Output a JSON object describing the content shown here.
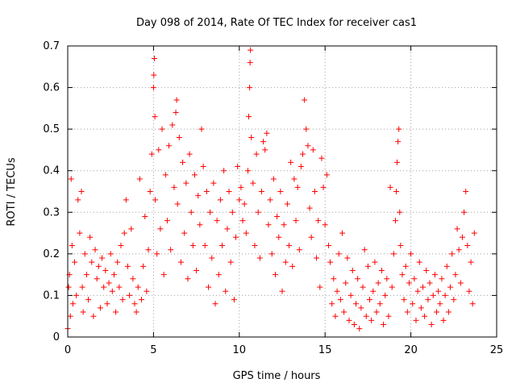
{
  "chart_data": {
    "type": "scatter",
    "title": "Day 098 of 2014, Rate Of TEC Index for receiver cas1",
    "xlabel": "GPS time / hours",
    "ylabel": "ROTI / TECUs",
    "xlim": [
      0,
      25
    ],
    "ylim": [
      0,
      0.7
    ],
    "x_ticks": [
      0,
      5,
      10,
      15,
      20,
      25
    ],
    "y_ticks": [
      0,
      0.1,
      0.2,
      0.3,
      0.4,
      0.5,
      0.6,
      0.7
    ],
    "x_tick_labels": [
      "0",
      "5",
      "10",
      "15",
      "20",
      "25"
    ],
    "y_tick_labels": [
      "0",
      "0.1",
      "0.2",
      "0.3",
      "0.4",
      "0.5",
      "0.6",
      "0.7"
    ],
    "grid": true,
    "marker": "+",
    "marker_color": "#ff0000",
    "series": [
      {
        "name": "ROTI",
        "points": [
          [
            0.0,
            0.02
          ],
          [
            0.05,
            0.12
          ],
          [
            0.1,
            0.15
          ],
          [
            0.15,
            0.05
          ],
          [
            0.2,
            0.38
          ],
          [
            0.25,
            0.22
          ],
          [
            0.3,
            0.08
          ],
          [
            0.4,
            0.18
          ],
          [
            0.5,
            0.1
          ],
          [
            0.6,
            0.33
          ],
          [
            0.7,
            0.25
          ],
          [
            0.8,
            0.35
          ],
          [
            0.85,
            0.12
          ],
          [
            0.9,
            0.06
          ],
          [
            1.0,
            0.2
          ],
          [
            1.1,
            0.15
          ],
          [
            1.2,
            0.09
          ],
          [
            1.3,
            0.24
          ],
          [
            1.4,
            0.18
          ],
          [
            1.5,
            0.05
          ],
          [
            1.6,
            0.21
          ],
          [
            1.7,
            0.14
          ],
          [
            1.8,
            0.17
          ],
          [
            1.9,
            0.07
          ],
          [
            2.0,
            0.19
          ],
          [
            2.1,
            0.12
          ],
          [
            2.2,
            0.16
          ],
          [
            2.3,
            0.08
          ],
          [
            2.4,
            0.13
          ],
          [
            2.5,
            0.2
          ],
          [
            2.6,
            0.11
          ],
          [
            2.7,
            0.15
          ],
          [
            2.8,
            0.06
          ],
          [
            2.9,
            0.18
          ],
          [
            3.0,
            0.12
          ],
          [
            3.1,
            0.22
          ],
          [
            3.2,
            0.09
          ],
          [
            3.3,
            0.25
          ],
          [
            3.4,
            0.33
          ],
          [
            3.5,
            0.17
          ],
          [
            3.6,
            0.1
          ],
          [
            3.7,
            0.26
          ],
          [
            3.8,
            0.14
          ],
          [
            3.9,
            0.08
          ],
          [
            4.0,
            0.06
          ],
          [
            4.1,
            0.12
          ],
          [
            4.2,
            0.38
          ],
          [
            4.3,
            0.09
          ],
          [
            4.4,
            0.17
          ],
          [
            4.5,
            0.29
          ],
          [
            4.6,
            0.11
          ],
          [
            4.7,
            0.21
          ],
          [
            4.8,
            0.35
          ],
          [
            4.9,
            0.44
          ],
          [
            5.0,
            0.6
          ],
          [
            5.02,
            0.63
          ],
          [
            5.05,
            0.67
          ],
          [
            5.08,
            0.53
          ],
          [
            5.1,
            0.33
          ],
          [
            5.2,
            0.2
          ],
          [
            5.3,
            0.45
          ],
          [
            5.4,
            0.26
          ],
          [
            5.5,
            0.5
          ],
          [
            5.6,
            0.15
          ],
          [
            5.7,
            0.39
          ],
          [
            5.8,
            0.28
          ],
          [
            5.9,
            0.46
          ],
          [
            6.0,
            0.21
          ],
          [
            6.1,
            0.51
          ],
          [
            6.2,
            0.36
          ],
          [
            6.3,
            0.54
          ],
          [
            6.35,
            0.57
          ],
          [
            6.4,
            0.32
          ],
          [
            6.5,
            0.48
          ],
          [
            6.6,
            0.18
          ],
          [
            6.7,
            0.42
          ],
          [
            6.8,
            0.25
          ],
          [
            6.9,
            0.37
          ],
          [
            7.0,
            0.14
          ],
          [
            7.1,
            0.44
          ],
          [
            7.2,
            0.3
          ],
          [
            7.3,
            0.22
          ],
          [
            7.4,
            0.39
          ],
          [
            7.5,
            0.16
          ],
          [
            7.6,
            0.34
          ],
          [
            7.7,
            0.27
          ],
          [
            7.8,
            0.5
          ],
          [
            7.9,
            0.41
          ],
          [
            8.0,
            0.22
          ],
          [
            8.1,
            0.35
          ],
          [
            8.2,
            0.12
          ],
          [
            8.3,
            0.3
          ],
          [
            8.4,
            0.19
          ],
          [
            8.5,
            0.37
          ],
          [
            8.6,
            0.08
          ],
          [
            8.7,
            0.28
          ],
          [
            8.8,
            0.15
          ],
          [
            8.9,
            0.33
          ],
          [
            9.0,
            0.22
          ],
          [
            9.1,
            0.4
          ],
          [
            9.2,
            0.11
          ],
          [
            9.3,
            0.26
          ],
          [
            9.4,
            0.35
          ],
          [
            9.5,
            0.18
          ],
          [
            9.6,
            0.3
          ],
          [
            9.7,
            0.09
          ],
          [
            9.8,
            0.24
          ],
          [
            9.9,
            0.41
          ],
          [
            10.0,
            0.33
          ],
          [
            10.1,
            0.36
          ],
          [
            10.2,
            0.28
          ],
          [
            10.3,
            0.32
          ],
          [
            10.4,
            0.25
          ],
          [
            10.5,
            0.4
          ],
          [
            10.55,
            0.53
          ],
          [
            10.6,
            0.6
          ],
          [
            10.63,
            0.66
          ],
          [
            10.65,
            0.69
          ],
          [
            10.7,
            0.48
          ],
          [
            10.8,
            0.37
          ],
          [
            10.9,
            0.22
          ],
          [
            11.0,
            0.44
          ],
          [
            11.1,
            0.3
          ],
          [
            11.2,
            0.19
          ],
          [
            11.3,
            0.35
          ],
          [
            11.4,
            0.47
          ],
          [
            11.5,
            0.45
          ],
          [
            11.6,
            0.49
          ],
          [
            11.7,
            0.27
          ],
          [
            11.8,
            0.33
          ],
          [
            11.9,
            0.2
          ],
          [
            12.0,
            0.38
          ],
          [
            12.1,
            0.15
          ],
          [
            12.2,
            0.29
          ],
          [
            12.3,
            0.24
          ],
          [
            12.4,
            0.35
          ],
          [
            12.5,
            0.11
          ],
          [
            12.6,
            0.27
          ],
          [
            12.7,
            0.18
          ],
          [
            12.8,
            0.32
          ],
          [
            12.9,
            0.22
          ],
          [
            13.0,
            0.42
          ],
          [
            13.1,
            0.17
          ],
          [
            13.2,
            0.38
          ],
          [
            13.3,
            0.28
          ],
          [
            13.4,
            0.36
          ],
          [
            13.5,
            0.21
          ],
          [
            13.6,
            0.41
          ],
          [
            13.7,
            0.44
          ],
          [
            13.8,
            0.57
          ],
          [
            13.9,
            0.5
          ],
          [
            14.0,
            0.46
          ],
          [
            14.1,
            0.31
          ],
          [
            14.2,
            0.24
          ],
          [
            14.3,
            0.45
          ],
          [
            14.4,
            0.35
          ],
          [
            14.5,
            0.19
          ],
          [
            14.6,
            0.28
          ],
          [
            14.7,
            0.12
          ],
          [
            14.8,
            0.43
          ],
          [
            14.9,
            0.36
          ],
          [
            15.0,
            0.27
          ],
          [
            15.1,
            0.39
          ],
          [
            15.2,
            0.22
          ],
          [
            15.3,
            0.18
          ],
          [
            15.4,
            0.08
          ],
          [
            15.5,
            0.14
          ],
          [
            15.6,
            0.05
          ],
          [
            15.7,
            0.11
          ],
          [
            15.8,
            0.2
          ],
          [
            15.9,
            0.09
          ],
          [
            16.0,
            0.25
          ],
          [
            16.1,
            0.06
          ],
          [
            16.2,
            0.13
          ],
          [
            16.3,
            0.19
          ],
          [
            16.4,
            0.04
          ],
          [
            16.5,
            0.1
          ],
          [
            16.6,
            0.16
          ],
          [
            16.7,
            0.03
          ],
          [
            16.8,
            0.08
          ],
          [
            16.9,
            0.14
          ],
          [
            17.0,
            0.02
          ],
          [
            17.1,
            0.07
          ],
          [
            17.2,
            0.12
          ],
          [
            17.3,
            0.21
          ],
          [
            17.4,
            0.05
          ],
          [
            17.5,
            0.17
          ],
          [
            17.6,
            0.09
          ],
          [
            17.7,
            0.04
          ],
          [
            17.8,
            0.11
          ],
          [
            17.9,
            0.18
          ],
          [
            18.0,
            0.06
          ],
          [
            18.1,
            0.13
          ],
          [
            18.2,
            0.08
          ],
          [
            18.3,
            0.16
          ],
          [
            18.4,
            0.03
          ],
          [
            18.5,
            0.1
          ],
          [
            18.6,
            0.14
          ],
          [
            18.7,
            0.05
          ],
          [
            18.8,
            0.36
          ],
          [
            18.9,
            0.12
          ],
          [
            19.0,
            0.2
          ],
          [
            19.1,
            0.28
          ],
          [
            19.15,
            0.35
          ],
          [
            19.2,
            0.42
          ],
          [
            19.25,
            0.47
          ],
          [
            19.3,
            0.5
          ],
          [
            19.35,
            0.3
          ],
          [
            19.4,
            0.22
          ],
          [
            19.5,
            0.15
          ],
          [
            19.6,
            0.09
          ],
          [
            19.7,
            0.17
          ],
          [
            19.8,
            0.06
          ],
          [
            19.9,
            0.13
          ],
          [
            20.0,
            0.2
          ],
          [
            20.1,
            0.08
          ],
          [
            20.2,
            0.14
          ],
          [
            20.3,
            0.04
          ],
          [
            20.4,
            0.11
          ],
          [
            20.5,
            0.18
          ],
          [
            20.6,
            0.07
          ],
          [
            20.7,
            0.12
          ],
          [
            20.8,
            0.05
          ],
          [
            20.9,
            0.16
          ],
          [
            21.0,
            0.09
          ],
          [
            21.1,
            0.13
          ],
          [
            21.2,
            0.03
          ],
          [
            21.3,
            0.1
          ],
          [
            21.4,
            0.15
          ],
          [
            21.5,
            0.06
          ],
          [
            21.6,
            0.11
          ],
          [
            21.7,
            0.08
          ],
          [
            21.8,
            0.14
          ],
          [
            21.9,
            0.04
          ],
          [
            22.0,
            0.1
          ],
          [
            22.1,
            0.17
          ],
          [
            22.2,
            0.06
          ],
          [
            22.3,
            0.12
          ],
          [
            22.4,
            0.2
          ],
          [
            22.5,
            0.09
          ],
          [
            22.6,
            0.15
          ],
          [
            22.7,
            0.26
          ],
          [
            22.8,
            0.21
          ],
          [
            22.9,
            0.13
          ],
          [
            23.0,
            0.24
          ],
          [
            23.1,
            0.3
          ],
          [
            23.2,
            0.35
          ],
          [
            23.3,
            0.22
          ],
          [
            23.4,
            0.11
          ],
          [
            23.5,
            0.18
          ],
          [
            23.6,
            0.08
          ],
          [
            23.7,
            0.25
          ]
        ]
      }
    ]
  }
}
